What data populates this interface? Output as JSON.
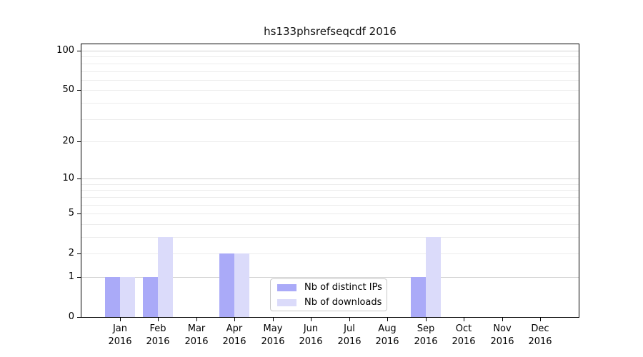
{
  "title": "hs133phsrefseqcdf 2016",
  "chart_data": {
    "type": "bar",
    "title": "hs133phsrefseqcdf 2016",
    "categories": [
      "Jan",
      "Feb",
      "Mar",
      "Apr",
      "May",
      "Jun",
      "Jul",
      "Aug",
      "Sep",
      "Oct",
      "Nov",
      "Dec"
    ],
    "category_year": "2016",
    "series": [
      {
        "name": "Nb of distinct IPs",
        "color": "#aaaaf8",
        "values": [
          1,
          1,
          0,
          2,
          0,
          0,
          0,
          0,
          1,
          0,
          0,
          0
        ]
      },
      {
        "name": "Nb of downloads",
        "color": "#dbdbfa",
        "values": [
          1,
          3,
          0,
          2,
          0,
          0,
          0,
          0,
          3,
          0,
          0,
          0
        ]
      }
    ],
    "xlabel": "",
    "ylabel": "",
    "y_scale": "log10(1+x)",
    "ylim": [
      0,
      112
    ],
    "y_major_ticks": [
      0,
      1,
      2,
      5,
      10,
      20,
      50,
      100
    ],
    "y_major_tick_labels": [
      "0",
      "1",
      "2",
      "5",
      "10",
      "20",
      "50",
      "100"
    ],
    "y_minor_gridlines": [
      3,
      4,
      6,
      7,
      8,
      9,
      30,
      40,
      60,
      70,
      80,
      90
    ],
    "y_darker_gridlines": [
      1,
      10,
      100
    ],
    "grid": "horizontal",
    "legend_position": "inside-bottom-center"
  },
  "legend": {
    "items": [
      {
        "label": "Nb of distinct IPs",
        "color": "#aaaaf8"
      },
      {
        "label": "Nb of downloads",
        "color": "#dbdbfa"
      }
    ]
  },
  "colors": {
    "plot_border": "#000000",
    "major_grid": "#d2d2d2",
    "minor_grid": "#ececec",
    "background": "#ffffff",
    "text": "#111111"
  }
}
